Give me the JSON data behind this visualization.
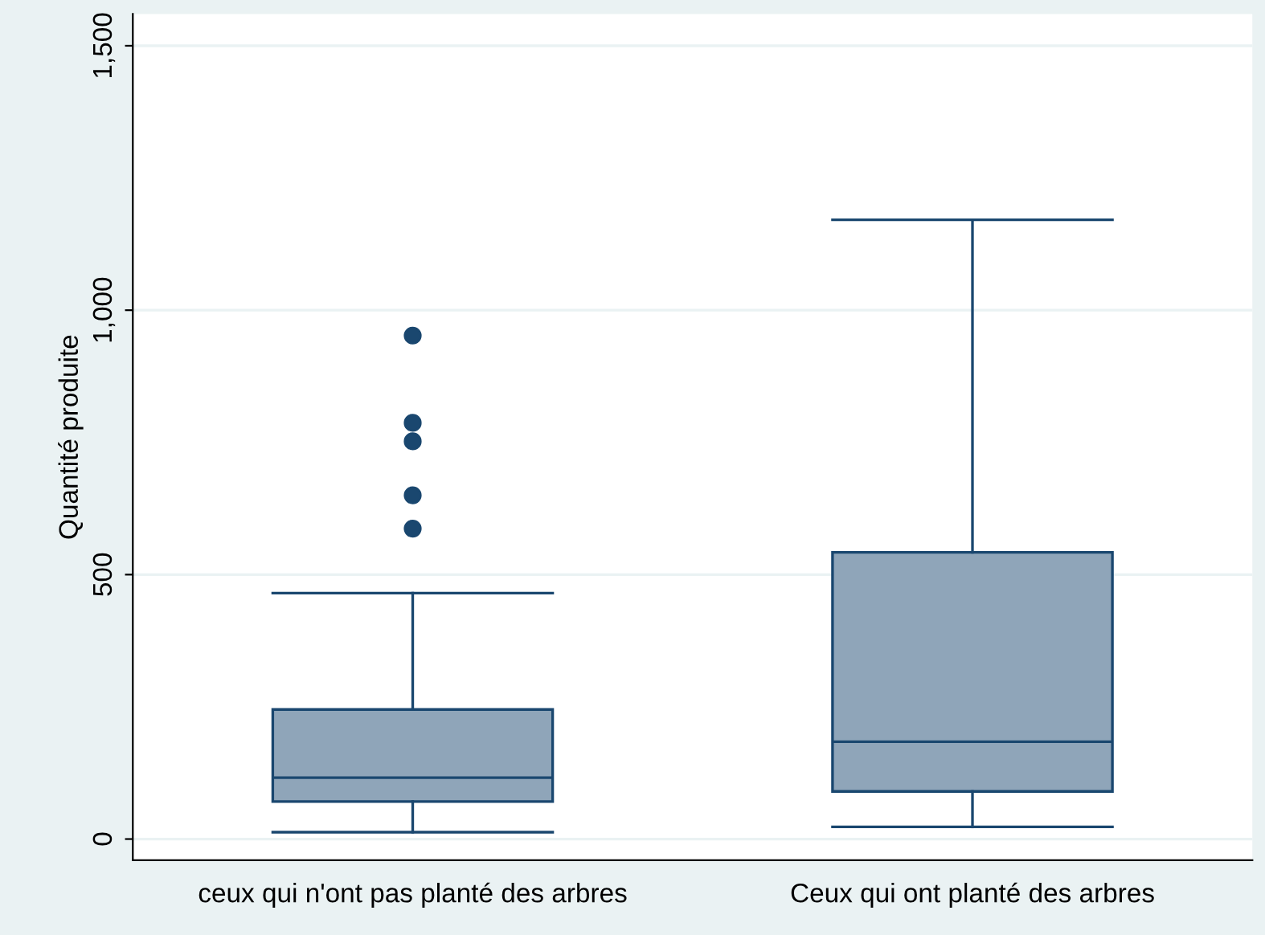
{
  "chart_data": {
    "type": "box",
    "ylabel": "Quantité produite",
    "categories": [
      "ceux qui n'ont pas planté des arbres",
      "Ceux qui ont planté des arbres"
    ],
    "boxes": [
      {
        "low": 13,
        "q1": 71,
        "median": 116,
        "q3": 245,
        "high": 465,
        "outliers": [
          587,
          650,
          752,
          787,
          952
        ]
      },
      {
        "low": 23,
        "q1": 90,
        "median": 184,
        "q3": 542,
        "high": 1171
      }
    ],
    "color": "#8fa5b9",
    "ylim": [
      -40,
      1560
    ],
    "yticks": [
      {
        "value": 0,
        "label": "0"
      },
      {
        "value": 500,
        "label": "500"
      },
      {
        "value": 1000,
        "label": "1,000"
      },
      {
        "value": 1500,
        "label": "1,500"
      }
    ],
    "grid": "y",
    "legend": false
  }
}
